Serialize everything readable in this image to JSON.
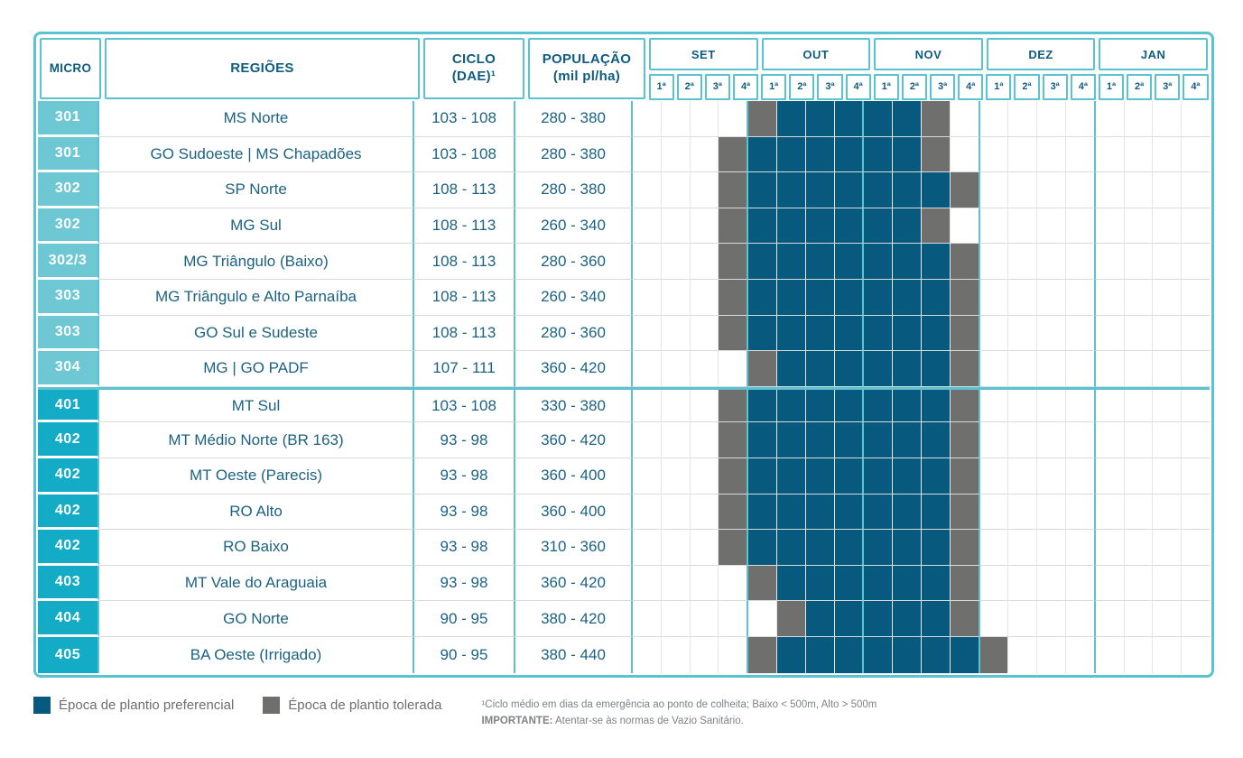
{
  "chart_data": {
    "type": "table",
    "description": "Planting-window calendar (gantt-style heatmap) by micro-region",
    "columns": {
      "micro": "MICRO",
      "regioes": "REGIÕES",
      "ciclo_line1": "CICLO",
      "ciclo_line2": "(DAE)¹",
      "populacao_line1": "POPULAÇÃO",
      "populacao_line2": "(mil pl/ha)"
    },
    "months": [
      "SET",
      "OUT",
      "NOV",
      "DEZ",
      "JAN"
    ],
    "weeks": [
      "1ª",
      "2ª",
      "3ª",
      "4ª"
    ],
    "cell_states": {
      "0": "empty",
      "1": "preferencial",
      "2": "tolerada"
    },
    "rows": [
      {
        "micro": "301",
        "group": "300",
        "regiao": "MS Norte",
        "ciclo": "103 - 108",
        "populacao": "280 - 380",
        "timeline": [
          0,
          0,
          0,
          0,
          2,
          1,
          1,
          1,
          1,
          1,
          2,
          0,
          0,
          0,
          0,
          0,
          0,
          0,
          0,
          0
        ]
      },
      {
        "micro": "301",
        "group": "300",
        "regiao": "GO Sudoeste | MS Chapadões",
        "ciclo": "103 - 108",
        "populacao": "280 - 380",
        "timeline": [
          0,
          0,
          0,
          2,
          1,
          1,
          1,
          1,
          1,
          1,
          2,
          0,
          0,
          0,
          0,
          0,
          0,
          0,
          0,
          0
        ]
      },
      {
        "micro": "302",
        "group": "300",
        "regiao": "SP Norte",
        "ciclo": "108 - 113",
        "populacao": "280 - 380",
        "timeline": [
          0,
          0,
          0,
          2,
          1,
          1,
          1,
          1,
          1,
          1,
          1,
          2,
          0,
          0,
          0,
          0,
          0,
          0,
          0,
          0
        ]
      },
      {
        "micro": "302",
        "group": "300",
        "regiao": "MG Sul",
        "ciclo": "108 - 113",
        "populacao": "260 - 340",
        "timeline": [
          0,
          0,
          0,
          2,
          1,
          1,
          1,
          1,
          1,
          1,
          2,
          0,
          0,
          0,
          0,
          0,
          0,
          0,
          0,
          0
        ]
      },
      {
        "micro": "302/3",
        "group": "300",
        "regiao": "MG Triângulo (Baixo)",
        "ciclo": "108 - 113",
        "populacao": "280 - 360",
        "timeline": [
          0,
          0,
          0,
          2,
          1,
          1,
          1,
          1,
          1,
          1,
          1,
          2,
          0,
          0,
          0,
          0,
          0,
          0,
          0,
          0
        ]
      },
      {
        "micro": "303",
        "group": "300",
        "regiao": "MG Triângulo e Alto Parnaíba",
        "ciclo": "108 - 113",
        "populacao": "260 - 340",
        "timeline": [
          0,
          0,
          0,
          2,
          1,
          1,
          1,
          1,
          1,
          1,
          1,
          2,
          0,
          0,
          0,
          0,
          0,
          0,
          0,
          0
        ]
      },
      {
        "micro": "303",
        "group": "300",
        "regiao": "GO Sul e Sudeste",
        "ciclo": "108 - 113",
        "populacao": "280 - 360",
        "timeline": [
          0,
          0,
          0,
          2,
          1,
          1,
          1,
          1,
          1,
          1,
          1,
          2,
          0,
          0,
          0,
          0,
          0,
          0,
          0,
          0
        ]
      },
      {
        "micro": "304",
        "group": "300",
        "regiao": "MG | GO PADF",
        "ciclo": "107 - 111",
        "populacao": "360 - 420",
        "timeline": [
          0,
          0,
          0,
          0,
          2,
          1,
          1,
          1,
          1,
          1,
          1,
          2,
          0,
          0,
          0,
          0,
          0,
          0,
          0,
          0
        ]
      },
      {
        "micro": "401",
        "group": "400",
        "regiao": "MT Sul",
        "ciclo": "103 - 108",
        "populacao": "330 - 380",
        "timeline": [
          0,
          0,
          0,
          2,
          1,
          1,
          1,
          1,
          1,
          1,
          1,
          2,
          0,
          0,
          0,
          0,
          0,
          0,
          0,
          0
        ]
      },
      {
        "micro": "402",
        "group": "400",
        "regiao": "MT Médio Norte (BR 163)",
        "ciclo": "93 - 98",
        "populacao": "360 - 420",
        "timeline": [
          0,
          0,
          0,
          2,
          1,
          1,
          1,
          1,
          1,
          1,
          1,
          2,
          0,
          0,
          0,
          0,
          0,
          0,
          0,
          0
        ]
      },
      {
        "micro": "402",
        "group": "400",
        "regiao": "MT Oeste (Parecis)",
        "ciclo": "93 - 98",
        "populacao": "360 - 400",
        "timeline": [
          0,
          0,
          0,
          2,
          1,
          1,
          1,
          1,
          1,
          1,
          1,
          2,
          0,
          0,
          0,
          0,
          0,
          0,
          0,
          0
        ]
      },
      {
        "micro": "402",
        "group": "400",
        "regiao": "RO Alto",
        "ciclo": "93 - 98",
        "populacao": "360 - 400",
        "timeline": [
          0,
          0,
          0,
          2,
          1,
          1,
          1,
          1,
          1,
          1,
          1,
          2,
          0,
          0,
          0,
          0,
          0,
          0,
          0,
          0
        ]
      },
      {
        "micro": "402",
        "group": "400",
        "regiao": "RO Baixo",
        "ciclo": "93 - 98",
        "populacao": "310 - 360",
        "timeline": [
          0,
          0,
          0,
          2,
          1,
          1,
          1,
          1,
          1,
          1,
          1,
          2,
          0,
          0,
          0,
          0,
          0,
          0,
          0,
          0
        ]
      },
      {
        "micro": "403",
        "group": "400",
        "regiao": "MT Vale do Araguaia",
        "ciclo": "93 - 98",
        "populacao": "360 - 420",
        "timeline": [
          0,
          0,
          0,
          0,
          2,
          1,
          1,
          1,
          1,
          1,
          1,
          2,
          0,
          0,
          0,
          0,
          0,
          0,
          0,
          0
        ]
      },
      {
        "micro": "404",
        "group": "400",
        "regiao": "GO Norte",
        "ciclo": "90 - 95",
        "populacao": "380 - 420",
        "timeline": [
          0,
          0,
          0,
          0,
          0,
          2,
          1,
          1,
          1,
          1,
          1,
          2,
          0,
          0,
          0,
          0,
          0,
          0,
          0,
          0
        ]
      },
      {
        "micro": "405",
        "group": "400",
        "regiao": "BA Oeste (Irrigado)",
        "ciclo": "90 - 95",
        "populacao": "380 - 440",
        "timeline": [
          0,
          0,
          0,
          0,
          2,
          1,
          1,
          1,
          1,
          1,
          1,
          1,
          2,
          0,
          0,
          0,
          0,
          0,
          0,
          0
        ]
      }
    ]
  },
  "legend": {
    "items": [
      {
        "label": "Época de plantio preferencial",
        "color_key": "preferencial"
      },
      {
        "label": "Época de plantio tolerada",
        "color_key": "tolerada"
      }
    ]
  },
  "notes": {
    "ciclo_note": "¹Ciclo médio em dias da emergência ao ponto de colheita; Baixo < 500m, Alto > 500m",
    "important_label": "IMPORTANTE:",
    "important_text": " Atentar-se às normas de Vazio Sanitário."
  },
  "colors": {
    "preferencial": "#075a7e",
    "tolerada": "#6f706e",
    "teal_border": "#5bc2d0",
    "micro_group_300": "#6ec8d4",
    "micro_group_400": "#14abc7",
    "header_text": "#0f5c80",
    "body_text": "#1b6283",
    "grid_line": "#d9dcde",
    "subgrid_line": "#e4e6e8",
    "legend_text": "#6d6e71",
    "note_text": "#7f8285"
  }
}
